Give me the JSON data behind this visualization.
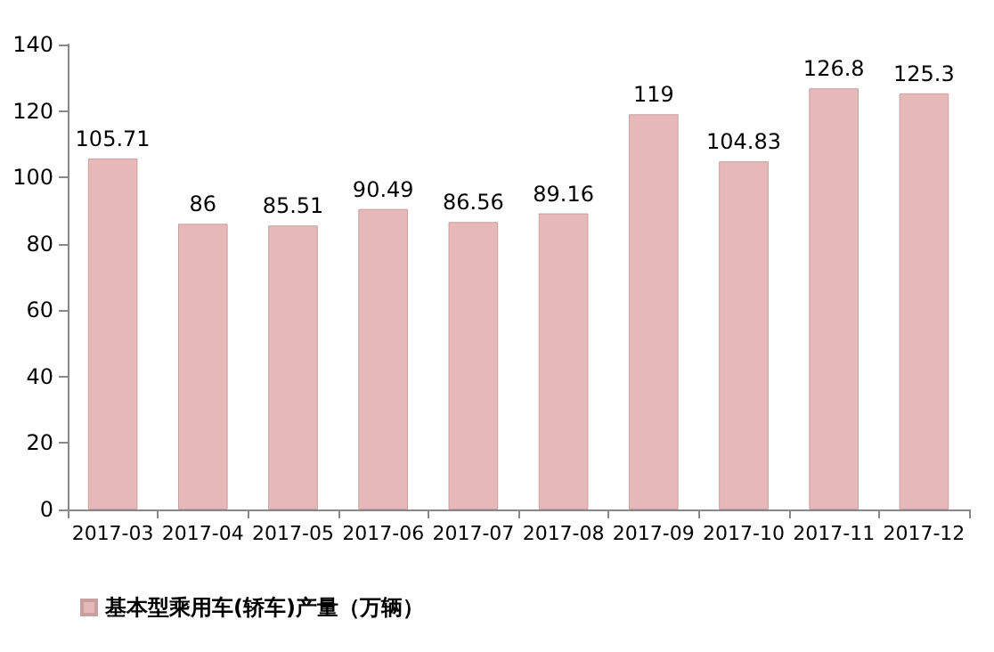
{
  "chart_data": {
    "type": "bar",
    "categories": [
      "2017-03",
      "2017-04",
      "2017-05",
      "2017-06",
      "2017-07",
      "2017-08",
      "2017-09",
      "2017-10",
      "2017-11",
      "2017-12"
    ],
    "series": [
      {
        "name": "基本型乘用车(轿车)产量（万辆）",
        "color": "#e6b9b8",
        "values": [
          105.71,
          86,
          85.51,
          90.49,
          86.56,
          89.16,
          119,
          104.83,
          126.8,
          125.3
        ]
      }
    ],
    "ylim": [
      0,
      140
    ],
    "yticks": [
      0,
      20,
      40,
      60,
      80,
      100,
      120,
      140
    ],
    "grid": false,
    "legend": "bottom left",
    "data_labels": true
  }
}
